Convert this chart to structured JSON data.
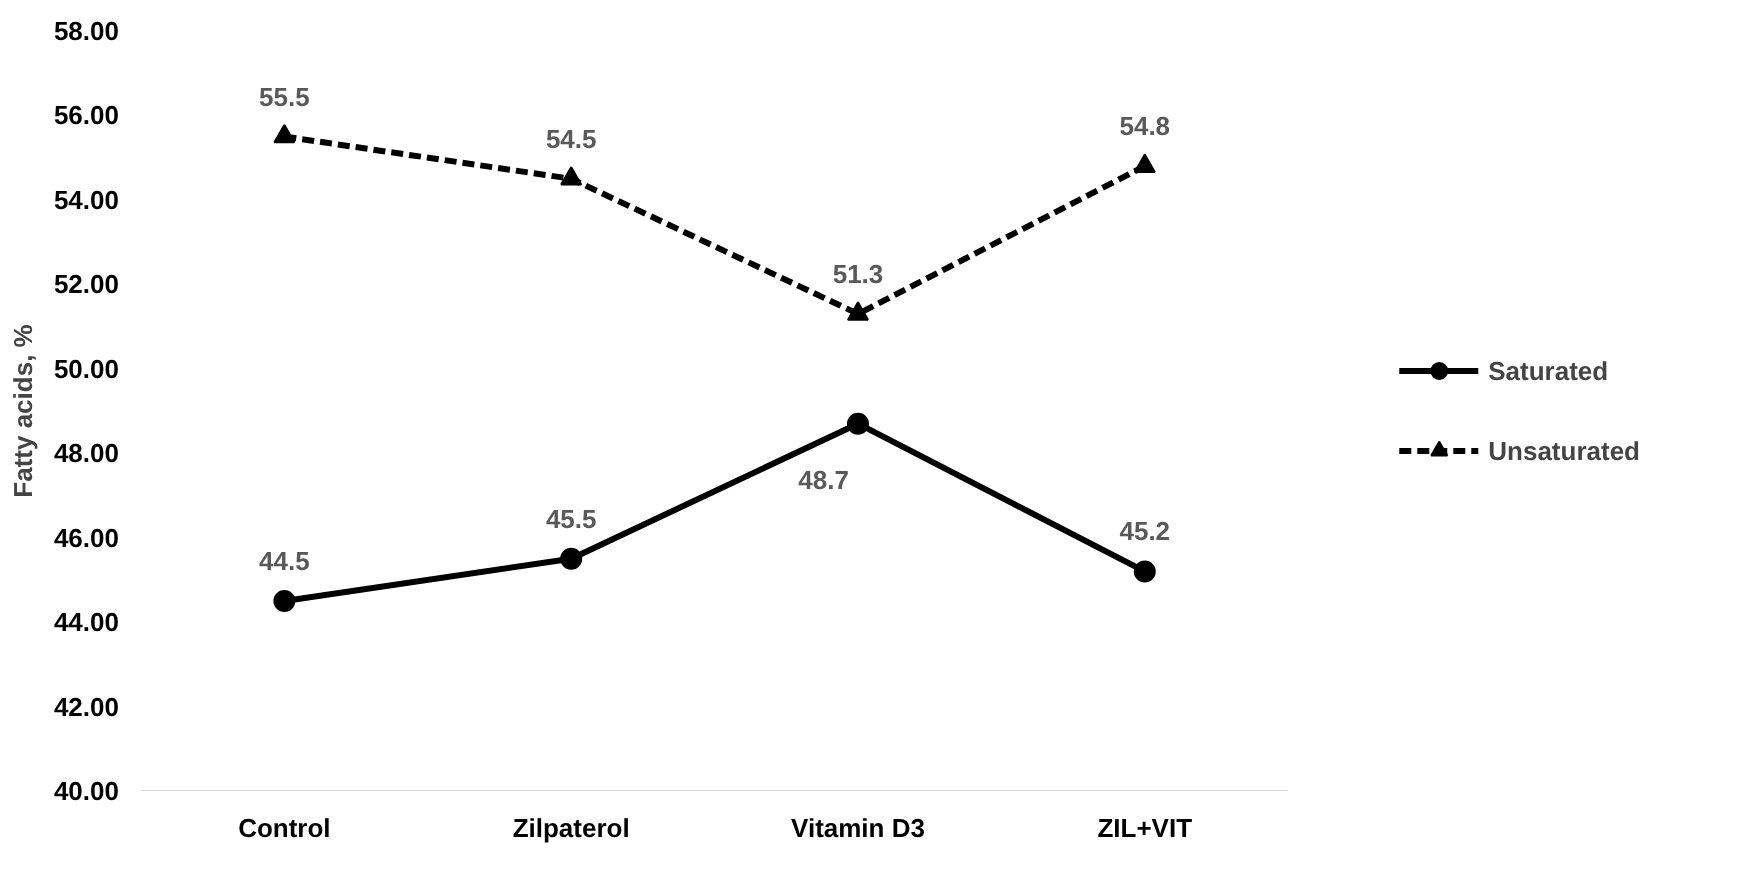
{
  "chart_data": {
    "type": "line",
    "ylabel": "Fatty acids, %",
    "categories": [
      "Control",
      "Zilpaterol",
      "Vitamin D3",
      "ZIL+VIT"
    ],
    "series": [
      {
        "name": "Saturated",
        "color": "#000000",
        "values": [
          44.5,
          45.5,
          48.7,
          45.2
        ],
        "marker": "circle",
        "line_style": "solid"
      },
      {
        "name": "Unsaturated",
        "color": "#000000",
        "values": [
          55.5,
          54.5,
          51.3,
          54.8
        ],
        "marker": "triangle",
        "line_style": "dashed"
      }
    ],
    "ylim": [
      40,
      58
    ],
    "yticks": [
      {
        "value": 40,
        "label": "40.00"
      },
      {
        "value": 42,
        "label": "42.00"
      },
      {
        "value": 44,
        "label": "44.00"
      },
      {
        "value": 46,
        "label": "46.00"
      },
      {
        "value": 48,
        "label": "48.00"
      },
      {
        "value": 50,
        "label": "50.00"
      },
      {
        "value": 52,
        "label": "52.00"
      },
      {
        "value": 54,
        "label": "54.00"
      },
      {
        "value": 56,
        "label": "56.00"
      },
      {
        "value": 58,
        "label": "58.00"
      }
    ],
    "data_labels": true,
    "grid": false,
    "legend": "right"
  }
}
